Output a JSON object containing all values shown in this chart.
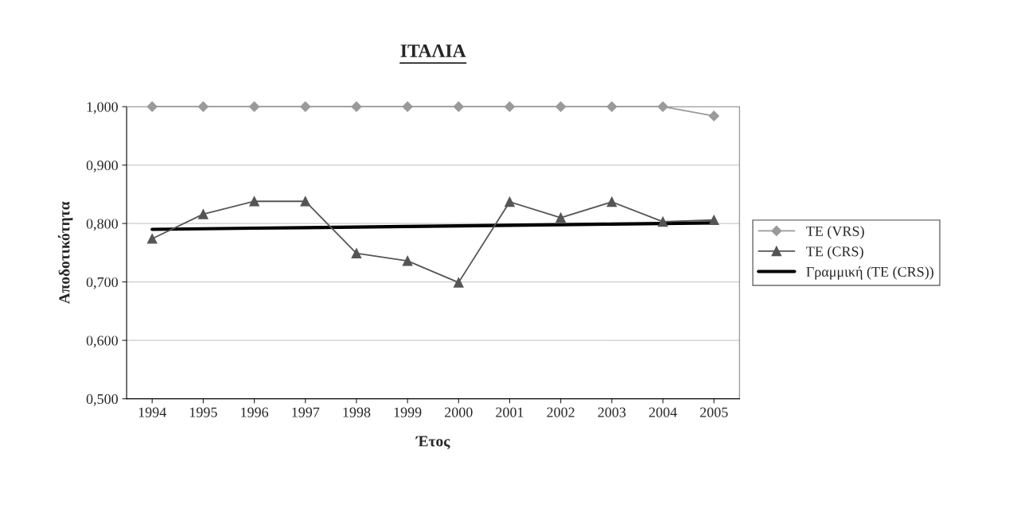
{
  "chart_data": {
    "type": "line",
    "title": "ΙΤΑΛΙΑ",
    "xlabel": "Έτος",
    "ylabel": "Αποδοτικότητα",
    "categories": [
      "1994",
      "1995",
      "1996",
      "1997",
      "1998",
      "1999",
      "2000",
      "2001",
      "2002",
      "2003",
      "2004",
      "2005"
    ],
    "series": [
      {
        "name": "TE (VRS)",
        "color": "#9a9a9a",
        "marker": "diamond",
        "values": [
          1.0,
          1.0,
          1.0,
          1.0,
          1.0,
          1.0,
          1.0,
          1.0,
          1.0,
          1.0,
          1.0,
          0.984
        ]
      },
      {
        "name": "TE (CRS)",
        "color": "#555555",
        "marker": "triangle",
        "values": [
          0.774,
          0.816,
          0.838,
          0.838,
          0.749,
          0.736,
          0.699,
          0.837,
          0.81,
          0.837,
          0.803,
          0.806
        ]
      },
      {
        "name": "Γραμμική (TE (CRS))",
        "color": "#000000",
        "marker": "none",
        "values": [
          0.79,
          0.791,
          0.792,
          0.793,
          0.794,
          0.795,
          0.796,
          0.797,
          0.798,
          0.799,
          0.8,
          0.801
        ]
      }
    ],
    "ylim": [
      0.5,
      1.0
    ],
    "yticks": [
      {
        "value": 0.5,
        "label": "0,500"
      },
      {
        "value": 0.6,
        "label": "0,600"
      },
      {
        "value": 0.7,
        "label": "0,700"
      },
      {
        "value": 0.8,
        "label": "0,800"
      },
      {
        "value": 0.9,
        "label": "0,900"
      },
      {
        "value": 1.0,
        "label": "1,000"
      }
    ],
    "grid": "y",
    "legend": "right"
  }
}
